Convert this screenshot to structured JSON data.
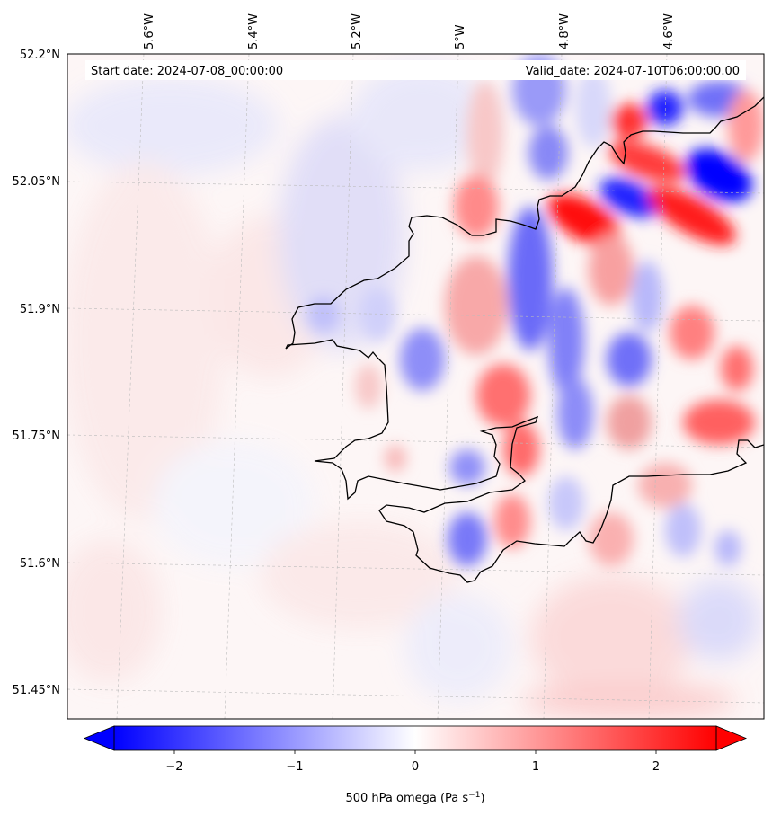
{
  "header": {
    "start_date": "Start date: 2024-07-08_00:00:00",
    "valid_date": "Valid_date: 2024-07-10T06:00:00.00"
  },
  "axes": {
    "lon_labels": [
      "5.6°W",
      "5.4°W",
      "5.2°W",
      "5°W",
      "4.8°W",
      "4.6°W"
    ],
    "lat_labels": [
      "52.2°N",
      "52.05°N",
      "51.9°N",
      "51.75°N",
      "51.6°N",
      "51.45°N"
    ]
  },
  "colorbar": {
    "ticks": [
      "−2",
      "−1",
      "0",
      "1",
      "2"
    ],
    "label": "500 hPa omega (Pa s",
    "label_sup": "−1",
    "label_end": ")",
    "vmin": -2.5,
    "vmax": 2.5,
    "negative_color": "#0000ff",
    "positive_color": "#ff0000"
  },
  "colors": {
    "coastline": "#000000",
    "gridline": "#bbbbbb"
  }
}
